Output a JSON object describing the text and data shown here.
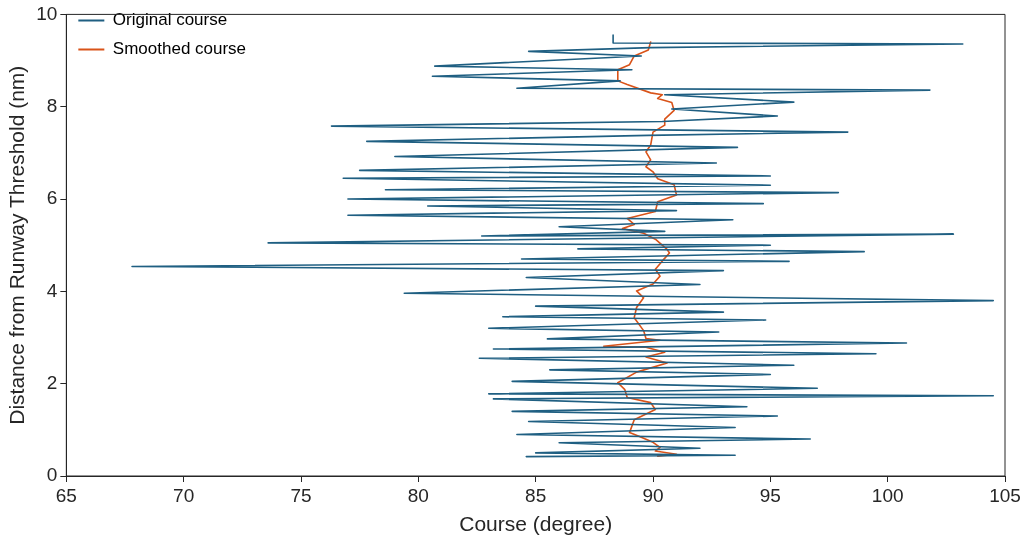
{
  "chart_data": {
    "type": "line",
    "xlabel": "Course (degree)",
    "ylabel": "Distance from Runway Threshold (nm)",
    "xlim": [
      65,
      105
    ],
    "xticks": [
      65,
      70,
      75,
      80,
      85,
      90,
      95,
      100,
      105
    ],
    "ylim": [
      0,
      10
    ],
    "yticks": [
      0,
      2,
      4,
      6,
      8,
      10
    ],
    "grid": false,
    "legend": "top left",
    "marker": "none",
    "line_style": "solid",
    "series": [
      {
        "name": "Original course",
        "color": "#1f5f82",
        "x": [
          88.3,
          88.3,
          103.2,
          89.9,
          84.7,
          89.5,
          80.7,
          89.1,
          80.6,
          88.6,
          84.2,
          101.8,
          90.5,
          96.0,
          90.8,
          95.3,
          90.4,
          76.3,
          98.3,
          89.8,
          77.8,
          93.6,
          79.0,
          92.7,
          77.5,
          95.0,
          76.8,
          95.0,
          78.6,
          97.9,
          77.0,
          94.7,
          80.4,
          91.0,
          77.0,
          93.4,
          86.0,
          90.5,
          82.7,
          102.8,
          73.6,
          95.0,
          86.8,
          99.0,
          84.4,
          95.8,
          67.8,
          93.0,
          84.6,
          92.0,
          79.4,
          104.5,
          85.0,
          93.0,
          83.6,
          94.8,
          83.0,
          92.8,
          85.5,
          100.8,
          83.2,
          99.5,
          82.6,
          96.0,
          85.6,
          95.0,
          84.0,
          97.0,
          83.0,
          104.5,
          83.2,
          94.0,
          84.0,
          95.3,
          84.7,
          93.5,
          84.2,
          96.7,
          86.0,
          92.0,
          85.0,
          93.5,
          84.6
        ],
        "values": [
          9.55,
          9.38,
          9.36,
          9.28,
          9.2,
          9.1,
          8.88,
          8.8,
          8.66,
          8.56,
          8.4,
          8.36,
          8.26,
          8.1,
          7.95,
          7.8,
          7.68,
          7.58,
          7.45,
          7.38,
          7.25,
          7.12,
          6.92,
          6.78,
          6.62,
          6.5,
          6.45,
          6.3,
          6.2,
          6.14,
          6.0,
          5.9,
          5.85,
          5.75,
          5.65,
          5.55,
          5.4,
          5.3,
          5.2,
          5.24,
          5.05,
          5.0,
          4.92,
          4.86,
          4.7,
          4.65,
          4.54,
          4.45,
          4.3,
          4.15,
          3.96,
          3.8,
          3.68,
          3.55,
          3.45,
          3.38,
          3.2,
          3.12,
          2.97,
          2.88,
          2.75,
          2.65,
          2.55,
          2.4,
          2.3,
          2.2,
          2.05,
          1.9,
          1.78,
          1.74,
          1.67,
          1.5,
          1.4,
          1.3,
          1.18,
          1.05,
          0.9,
          0.8,
          0.72,
          0.6,
          0.5,
          0.45,
          0.42
        ]
      },
      {
        "name": "Smoothed course",
        "color": "#d95319",
        "x": [
          89.9,
          89.8,
          89.2,
          89.0,
          88.5,
          88.5,
          88.9,
          89.9,
          90.4,
          90.2,
          90.8,
          90.9,
          90.5,
          90.5,
          90.0,
          89.9,
          89.7,
          89.9,
          89.7,
          90.0,
          90.2,
          90.9,
          91.0,
          90.2,
          90.1,
          88.9,
          89.2,
          88.7,
          89.6,
          90.1,
          90.6,
          90.7,
          90.4,
          90.1,
          90.3,
          90.0,
          89.3,
          89.6,
          89.3,
          89.2,
          89.6,
          89.7,
          90.3,
          87.9,
          89.7,
          90.5,
          89.7,
          90.6,
          89.3,
          88.5,
          88.8,
          88.9,
          89.9,
          90.1,
          89.2,
          89.0,
          89.4,
          90.0,
          90.3,
          90.1,
          91.0,
          90.2
        ],
        "values": [
          9.4,
          9.23,
          9.1,
          8.91,
          8.8,
          8.56,
          8.48,
          8.3,
          8.26,
          8.18,
          8.09,
          7.92,
          7.73,
          7.6,
          7.45,
          7.17,
          7.02,
          6.85,
          6.7,
          6.59,
          6.44,
          6.31,
          6.09,
          5.94,
          5.73,
          5.58,
          5.45,
          5.36,
          5.26,
          5.13,
          4.91,
          4.83,
          4.66,
          4.48,
          4.33,
          4.16,
          4.01,
          3.86,
          3.65,
          3.43,
          3.15,
          2.98,
          2.94,
          2.81,
          2.79,
          2.68,
          2.58,
          2.45,
          2.25,
          2.02,
          1.87,
          1.7,
          1.59,
          1.44,
          1.22,
          0.94,
          0.86,
          0.73,
          0.62,
          0.54,
          0.47,
          0.43
        ]
      }
    ]
  }
}
